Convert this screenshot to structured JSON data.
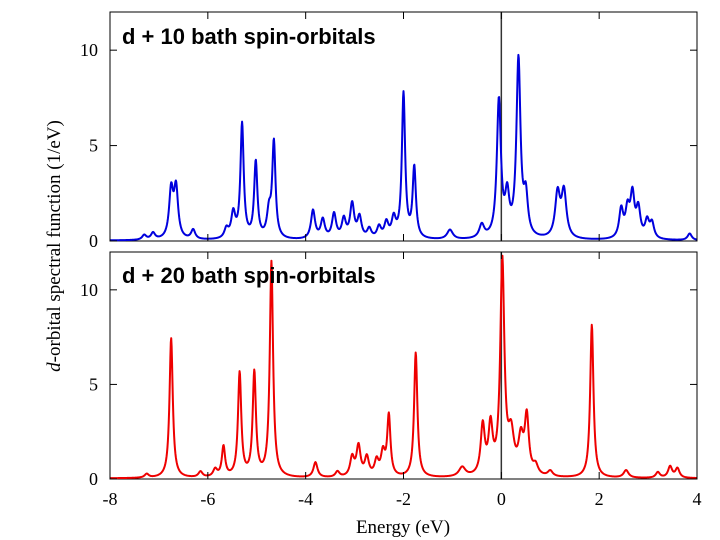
{
  "chart_data": [
    {
      "type": "line",
      "title": "d + 10 bath spin-orbitals",
      "xlabel": "Energy (eV)",
      "ylabel": "d-orbital spectral function (1/eV)",
      "xlim": [
        -8,
        4
      ],
      "ylim": [
        0,
        12
      ],
      "xticks": [
        -8,
        -6,
        -4,
        -2,
        0,
        2,
        4
      ],
      "yticks": [
        0,
        5,
        10
      ],
      "line_color": "#0000dd",
      "baseline": 0.02,
      "vline": 0,
      "grid": false,
      "series": [
        {
          "name": "d + 10 bath spin-orbitals",
          "peaks": [
            {
              "x": -7.3,
              "h": 0.25,
              "w": 0.05
            },
            {
              "x": -7.12,
              "h": 0.35,
              "w": 0.05
            },
            {
              "x": -6.75,
              "h": 2.5,
              "w": 0.05
            },
            {
              "x": -6.65,
              "h": 2.6,
              "w": 0.05
            },
            {
              "x": -6.3,
              "h": 0.5,
              "w": 0.05
            },
            {
              "x": -5.62,
              "h": 0.5,
              "w": 0.05
            },
            {
              "x": -5.48,
              "h": 1.3,
              "w": 0.05
            },
            {
              "x": -5.3,
              "h": 6.0,
              "w": 0.04
            },
            {
              "x": -5.02,
              "h": 4.0,
              "w": 0.04
            },
            {
              "x": -4.75,
              "h": 1.3,
              "w": 0.05
            },
            {
              "x": -4.65,
              "h": 5.0,
              "w": 0.04
            },
            {
              "x": -3.85,
              "h": 1.5,
              "w": 0.05
            },
            {
              "x": -3.65,
              "h": 1.0,
              "w": 0.05
            },
            {
              "x": -3.42,
              "h": 1.3,
              "w": 0.05
            },
            {
              "x": -3.22,
              "h": 1.0,
              "w": 0.05
            },
            {
              "x": -3.05,
              "h": 1.8,
              "w": 0.05
            },
            {
              "x": -2.9,
              "h": 1.1,
              "w": 0.05
            },
            {
              "x": -2.7,
              "h": 0.5,
              "w": 0.05
            },
            {
              "x": -2.5,
              "h": 0.6,
              "w": 0.05
            },
            {
              "x": -2.35,
              "h": 0.8,
              "w": 0.05
            },
            {
              "x": -2.2,
              "h": 1.0,
              "w": 0.05
            },
            {
              "x": -2.0,
              "h": 7.6,
              "w": 0.04
            },
            {
              "x": -1.78,
              "h": 3.7,
              "w": 0.04
            },
            {
              "x": -1.05,
              "h": 0.5,
              "w": 0.07
            },
            {
              "x": -0.4,
              "h": 0.7,
              "w": 0.06
            },
            {
              "x": -0.05,
              "h": 7.2,
              "w": 0.05
            },
            {
              "x": 0.12,
              "h": 2.0,
              "w": 0.05
            },
            {
              "x": 0.35,
              "h": 9.3,
              "w": 0.05
            },
            {
              "x": 0.5,
              "h": 2.0,
              "w": 0.05
            },
            {
              "x": 1.15,
              "h": 2.3,
              "w": 0.06
            },
            {
              "x": 1.28,
              "h": 2.4,
              "w": 0.06
            },
            {
              "x": 2.45,
              "h": 1.5,
              "w": 0.05
            },
            {
              "x": 2.58,
              "h": 1.4,
              "w": 0.05
            },
            {
              "x": 2.68,
              "h": 2.2,
              "w": 0.05
            },
            {
              "x": 2.8,
              "h": 1.5,
              "w": 0.05
            },
            {
              "x": 2.98,
              "h": 0.9,
              "w": 0.05
            },
            {
              "x": 3.08,
              "h": 0.8,
              "w": 0.05
            },
            {
              "x": 3.85,
              "h": 0.35,
              "w": 0.05
            }
          ]
        }
      ]
    },
    {
      "type": "line",
      "title": "d + 20 bath spin-orbitals",
      "xlabel": "Energy (eV)",
      "ylabel": "d-orbital spectral function (1/eV)",
      "xlim": [
        -8,
        4
      ],
      "ylim": [
        0,
        12
      ],
      "xticks": [
        -8,
        -6,
        -4,
        -2,
        0,
        2,
        4
      ],
      "yticks": [
        0,
        5,
        10
      ],
      "line_color": "#ee0000",
      "baseline": 0.03,
      "vline": 0,
      "grid": false,
      "series": [
        {
          "name": "d + 20 bath spin-orbitals",
          "peaks": [
            {
              "x": -7.25,
              "h": 0.2,
              "w": 0.05
            },
            {
              "x": -6.75,
              "h": 7.4,
              "w": 0.04
            },
            {
              "x": -6.15,
              "h": 0.3,
              "w": 0.05
            },
            {
              "x": -5.85,
              "h": 0.4,
              "w": 0.05
            },
            {
              "x": -5.68,
              "h": 1.6,
              "w": 0.04
            },
            {
              "x": -5.35,
              "h": 5.5,
              "w": 0.04
            },
            {
              "x": -5.05,
              "h": 5.5,
              "w": 0.04
            },
            {
              "x": -4.7,
              "h": 11.4,
              "w": 0.04
            },
            {
              "x": -3.8,
              "h": 0.8,
              "w": 0.05
            },
            {
              "x": -3.35,
              "h": 0.3,
              "w": 0.05
            },
            {
              "x": -3.05,
              "h": 1.0,
              "w": 0.05
            },
            {
              "x": -2.92,
              "h": 1.6,
              "w": 0.05
            },
            {
              "x": -2.75,
              "h": 1.0,
              "w": 0.05
            },
            {
              "x": -2.55,
              "h": 0.8,
              "w": 0.05
            },
            {
              "x": -2.42,
              "h": 1.2,
              "w": 0.05
            },
            {
              "x": -2.3,
              "h": 3.2,
              "w": 0.04
            },
            {
              "x": -1.75,
              "h": 6.6,
              "w": 0.04
            },
            {
              "x": -0.8,
              "h": 0.5,
              "w": 0.08
            },
            {
              "x": -0.38,
              "h": 2.6,
              "w": 0.05
            },
            {
              "x": -0.22,
              "h": 2.5,
              "w": 0.05
            },
            {
              "x": 0.02,
              "h": 11.3,
              "w": 0.05
            },
            {
              "x": 0.2,
              "h": 2.0,
              "w": 0.07
            },
            {
              "x": 0.4,
              "h": 1.8,
              "w": 0.06
            },
            {
              "x": 0.52,
              "h": 3.0,
              "w": 0.05
            },
            {
              "x": 0.7,
              "h": 0.5,
              "w": 0.06
            },
            {
              "x": 1.0,
              "h": 0.3,
              "w": 0.06
            },
            {
              "x": 1.85,
              "h": 8.1,
              "w": 0.04
            },
            {
              "x": 2.55,
              "h": 0.4,
              "w": 0.06
            },
            {
              "x": 3.2,
              "h": 0.3,
              "w": 0.05
            },
            {
              "x": 3.45,
              "h": 0.6,
              "w": 0.05
            },
            {
              "x": 3.6,
              "h": 0.5,
              "w": 0.05
            }
          ]
        }
      ]
    }
  ]
}
